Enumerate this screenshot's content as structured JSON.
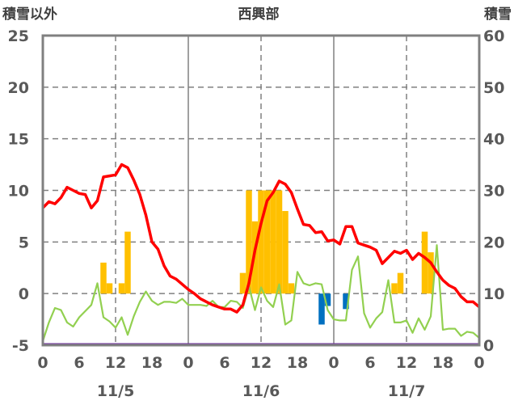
{
  "chart_data": {
    "type": "combo",
    "title": "西興部",
    "y_left_label": "積雪以外",
    "y_right_label": "積雪",
    "y_left_range": [
      -5,
      25
    ],
    "y_left_ticks": [
      "-5",
      "0",
      "5",
      "10",
      "15",
      "20",
      "25"
    ],
    "y_right_range": [
      0,
      60
    ],
    "y_right_ticks": [
      "0",
      "10",
      "20",
      "30",
      "40",
      "50",
      "60"
    ],
    "x_range_hours": [
      0,
      72
    ],
    "x_tick_labels": [
      "0",
      "6",
      "12",
      "18",
      "0",
      "6",
      "12",
      "18",
      "0",
      "6",
      "12",
      "18",
      "0"
    ],
    "date_labels": [
      "11/5",
      "11/6",
      "11/7"
    ],
    "colors": {
      "red": "#ff0000",
      "green": "#92d050",
      "yellow": "#ffc000",
      "blue": "#0070c0",
      "purple": "#7030a0",
      "grid": "#808080",
      "frame": "#808080"
    },
    "red_line": [
      [
        0,
        8.3
      ],
      [
        1,
        8.9
      ],
      [
        2,
        8.7
      ],
      [
        3,
        9.3
      ],
      [
        4,
        10.3
      ],
      [
        5,
        10.0
      ],
      [
        6,
        9.7
      ],
      [
        7,
        9.6
      ],
      [
        8,
        8.3
      ],
      [
        9,
        9.0
      ],
      [
        10,
        11.3
      ],
      [
        11,
        11.4
      ],
      [
        12,
        11.5
      ],
      [
        13,
        12.5
      ],
      [
        14,
        12.2
      ],
      [
        15,
        11.0
      ],
      [
        16,
        9.6
      ],
      [
        17,
        7.6
      ],
      [
        18,
        5.0
      ],
      [
        19,
        4.3
      ],
      [
        20,
        2.7
      ],
      [
        21,
        1.7
      ],
      [
        22,
        1.4
      ],
      [
        23,
        0.9
      ],
      [
        24,
        0.4
      ],
      [
        25,
        0.0
      ],
      [
        26,
        -0.5
      ],
      [
        27,
        -0.8
      ],
      [
        28,
        -1.1
      ],
      [
        29,
        -1.3
      ],
      [
        30,
        -1.5
      ],
      [
        31,
        -1.5
      ],
      [
        32,
        -1.8
      ],
      [
        33,
        -1.1
      ],
      [
        34,
        1.0
      ],
      [
        35,
        4.2
      ],
      [
        36,
        6.8
      ],
      [
        37,
        9.0
      ],
      [
        38,
        9.8
      ],
      [
        39,
        10.9
      ],
      [
        40,
        10.6
      ],
      [
        41,
        9.8
      ],
      [
        42,
        8.2
      ],
      [
        43,
        6.7
      ],
      [
        44,
        6.6
      ],
      [
        45,
        5.9
      ],
      [
        46,
        6.0
      ],
      [
        47,
        5.1
      ],
      [
        48,
        5.2
      ],
      [
        49,
        4.8
      ],
      [
        50,
        6.5
      ],
      [
        51,
        6.5
      ],
      [
        52,
        4.9
      ],
      [
        53,
        4.7
      ],
      [
        54,
        4.5
      ],
      [
        55,
        4.2
      ],
      [
        56,
        2.9
      ],
      [
        57,
        3.5
      ],
      [
        58,
        4.1
      ],
      [
        59,
        3.9
      ],
      [
        60,
        4.2
      ],
      [
        61,
        3.3
      ],
      [
        62,
        3.9
      ],
      [
        63,
        3.5
      ],
      [
        64,
        3.0
      ],
      [
        65,
        2.1
      ],
      [
        66,
        1.3
      ],
      [
        67,
        0.8
      ],
      [
        68,
        0.5
      ],
      [
        69,
        -0.3
      ],
      [
        70,
        -0.8
      ],
      [
        71,
        -0.8
      ],
      [
        72,
        -1.3
      ]
    ],
    "green_line": [
      [
        0,
        -4.6
      ],
      [
        1,
        -2.8
      ],
      [
        2,
        -1.4
      ],
      [
        3,
        -1.6
      ],
      [
        4,
        -2.8
      ],
      [
        5,
        -3.2
      ],
      [
        6,
        -2.3
      ],
      [
        7,
        -1.7
      ],
      [
        8,
        -1.1
      ],
      [
        9,
        1.0
      ],
      [
        10,
        -2.3
      ],
      [
        11,
        -2.7
      ],
      [
        12,
        -3.3
      ],
      [
        13,
        -2.3
      ],
      [
        14,
        -4.0
      ],
      [
        15,
        -2.2
      ],
      [
        16,
        -0.8
      ],
      [
        17,
        0.2
      ],
      [
        18,
        -0.7
      ],
      [
        19,
        -1.1
      ],
      [
        20,
        -0.8
      ],
      [
        21,
        -0.8
      ],
      [
        22,
        -0.9
      ],
      [
        23,
        -0.5
      ],
      [
        24,
        -1.1
      ],
      [
        25,
        -1.1
      ],
      [
        26,
        -1.1
      ],
      [
        27,
        -1.2
      ],
      [
        28,
        -0.7
      ],
      [
        29,
        -1.3
      ],
      [
        30,
        -1.3
      ],
      [
        31,
        -0.7
      ],
      [
        32,
        -0.8
      ],
      [
        33,
        -1.4
      ],
      [
        34,
        0.7
      ],
      [
        35,
        -1.6
      ],
      [
        36,
        0.6
      ],
      [
        37,
        -0.7
      ],
      [
        38,
        -1.3
      ],
      [
        39,
        0.9
      ],
      [
        40,
        -3.0
      ],
      [
        41,
        -2.6
      ],
      [
        42,
        2.1
      ],
      [
        43,
        1.0
      ],
      [
        44,
        0.8
      ],
      [
        45,
        1.0
      ],
      [
        46,
        0.9
      ],
      [
        47,
        -1.6
      ],
      [
        48,
        -2.5
      ],
      [
        49,
        -2.6
      ],
      [
        50,
        -2.6
      ],
      [
        51,
        2.3
      ],
      [
        52,
        3.6
      ],
      [
        53,
        -1.9
      ],
      [
        54,
        -3.3
      ],
      [
        55,
        -2.4
      ],
      [
        56,
        -1.8
      ],
      [
        57,
        1.3
      ],
      [
        58,
        -2.8
      ],
      [
        59,
        -2.8
      ],
      [
        60,
        -2.6
      ],
      [
        61,
        -3.8
      ],
      [
        62,
        -2.4
      ],
      [
        63,
        -3.5
      ],
      [
        64,
        -2.2
      ],
      [
        65,
        4.7
      ],
      [
        66,
        -3.5
      ],
      [
        67,
        -3.4
      ],
      [
        68,
        -3.4
      ],
      [
        69,
        -4.1
      ],
      [
        70,
        -3.7
      ],
      [
        71,
        -3.8
      ],
      [
        72,
        -4.3
      ]
    ],
    "yellow_bars": [
      {
        "start": 9.5,
        "end": 10.5,
        "value": 3.0
      },
      {
        "start": 10.5,
        "end": 11.5,
        "value": 1.0
      },
      {
        "start": 12.5,
        "end": 13.5,
        "value": 1.0
      },
      {
        "start": 13.5,
        "end": 14.5,
        "value": 6.0
      },
      {
        "start": 32.5,
        "end": 33.5,
        "value": 2.0
      },
      {
        "start": 33.5,
        "end": 34.5,
        "value": 10.0
      },
      {
        "start": 34.5,
        "end": 35.5,
        "value": 7.0
      },
      {
        "start": 35.5,
        "end": 36.5,
        "value": 10.0
      },
      {
        "start": 36.5,
        "end": 37.5,
        "value": 10.0
      },
      {
        "start": 37.5,
        "end": 38.5,
        "value": 10.0
      },
      {
        "start": 38.5,
        "end": 39.5,
        "value": 10.0
      },
      {
        "start": 39.5,
        "end": 40.5,
        "value": 8.0
      },
      {
        "start": 40.5,
        "end": 41.5,
        "value": 1.0
      },
      {
        "start": 57.5,
        "end": 58.5,
        "value": 1.0
      },
      {
        "start": 58.5,
        "end": 59.5,
        "value": 2.0
      },
      {
        "start": 62.5,
        "end": 63.5,
        "value": 6.0
      },
      {
        "start": 63.5,
        "end": 64.5,
        "value": 4.0
      }
    ],
    "blue_bars": [
      {
        "start": 45.5,
        "end": 46.5,
        "value": -3.0
      },
      {
        "start": 46.5,
        "end": 47.5,
        "value": -1.2
      },
      {
        "start": 49.5,
        "end": 50.5,
        "value": -1.5
      }
    ],
    "purple_line": [
      [
        0,
        0
      ],
      [
        72,
        0
      ]
    ]
  }
}
